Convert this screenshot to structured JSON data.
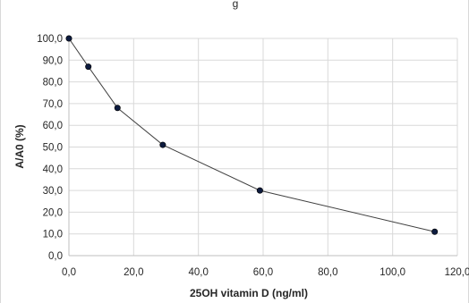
{
  "chart_data": {
    "type": "scatter",
    "title_fragment": "g",
    "xlabel": "25OH vitamin D (ng/ml)",
    "ylabel": "A/A0 (%)",
    "xlim": [
      0,
      120
    ],
    "ylim": [
      0,
      100
    ],
    "x_ticks": [
      0,
      20,
      40,
      60,
      80,
      100,
      120
    ],
    "y_ticks": [
      0,
      10,
      20,
      30,
      40,
      50,
      60,
      70,
      80,
      90,
      100
    ],
    "x_tick_labels": [
      "0,0",
      "20,0",
      "40,0",
      "60,0",
      "80,0",
      "100,0",
      "120,0"
    ],
    "y_tick_labels": [
      "0,0",
      "10,0",
      "20,0",
      "30,0",
      "40,0",
      "50,0",
      "60,0",
      "70,0",
      "80,0",
      "90,0",
      "100,0"
    ],
    "grid": true,
    "line_color": "#404040",
    "marker_color": "#0d1b3e",
    "grid_color": "#d9d9d9",
    "series": [
      {
        "x": [
          0,
          6,
          15,
          29,
          59,
          113
        ],
        "y": [
          100,
          87,
          68,
          51,
          30,
          11
        ]
      }
    ]
  }
}
